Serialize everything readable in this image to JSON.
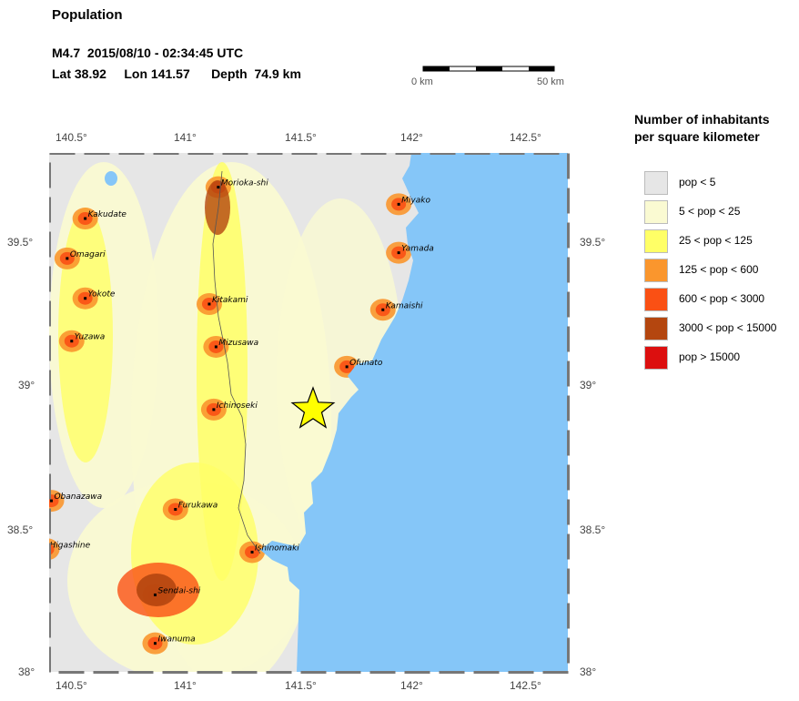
{
  "header": {
    "title": "Population",
    "line1": "M4.7  2015/08/10 - 02:34:45 UTC",
    "line2": "Lat 38.92     Lon 141.57      Depth  74.9 km"
  },
  "scale_bar": {
    "left_label": "0 km",
    "right_label": "50 km"
  },
  "map": {
    "lon_range": [
      140.4,
      142.7
    ],
    "lat_range": [
      38.0,
      39.82
    ],
    "lon_ticks": [
      "140.5°",
      "141°",
      "141.5°",
      "142°",
      "142.5°"
    ],
    "lat_ticks": [
      "39.5°",
      "39°",
      "38.5°",
      "38°"
    ],
    "epicenter": {
      "lat": 38.92,
      "lon": 141.57
    },
    "colors": {
      "ocean": "#85c6f8",
      "land": "#e6e6e6",
      "lowpop": "#fafad2",
      "medpop": "#ffff66",
      "epicenter_star": "#ffff00"
    },
    "cities": [
      {
        "name": "Morioka-shi",
        "lat": 39.7,
        "lon": 141.15
      },
      {
        "name": "Miyako",
        "lat": 39.64,
        "lon": 141.95
      },
      {
        "name": "Kakudate",
        "lat": 39.59,
        "lon": 140.56
      },
      {
        "name": "Omagari",
        "lat": 39.45,
        "lon": 140.48
      },
      {
        "name": "Yamada",
        "lat": 39.47,
        "lon": 141.95
      },
      {
        "name": "Yokote",
        "lat": 39.31,
        "lon": 140.56
      },
      {
        "name": "Kitakami",
        "lat": 39.29,
        "lon": 141.11
      },
      {
        "name": "Kamaishi",
        "lat": 39.27,
        "lon": 141.88
      },
      {
        "name": "Yuzawa",
        "lat": 39.16,
        "lon": 140.5
      },
      {
        "name": "Mizusawa",
        "lat": 39.14,
        "lon": 141.14
      },
      {
        "name": "Ofunato",
        "lat": 39.07,
        "lon": 141.72
      },
      {
        "name": "Ichinoseki",
        "lat": 38.92,
        "lon": 141.13
      },
      {
        "name": "Obanazawa",
        "lat": 38.6,
        "lon": 140.41
      },
      {
        "name": "Furukawa",
        "lat": 38.57,
        "lon": 140.96
      },
      {
        "name": "Higashine",
        "lat": 38.43,
        "lon": 140.39
      },
      {
        "name": "Ishinomaki",
        "lat": 38.42,
        "lon": 141.3
      },
      {
        "name": "Sendai-shi",
        "lat": 38.27,
        "lon": 140.87
      },
      {
        "name": "Iwanuma",
        "lat": 38.1,
        "lon": 140.87
      }
    ]
  },
  "legend": {
    "title_line1": "Number of inhabitants",
    "title_line2": "per square kilometer",
    "items": [
      {
        "label": "pop < 5",
        "color": "#e6e6e6"
      },
      {
        "label": "5 < pop < 25",
        "color": "#fafad2"
      },
      {
        "label": "25 < pop < 125",
        "color": "#ffff66"
      },
      {
        "label": "125 < pop < 600",
        "color": "#fa962d"
      },
      {
        "label": "600 < pop < 3000",
        "color": "#fa5014"
      },
      {
        "label": "3000 < pop < 15000",
        "color": "#b4460f"
      },
      {
        "label": "pop > 15000",
        "color": "#dc0f0f"
      }
    ]
  }
}
